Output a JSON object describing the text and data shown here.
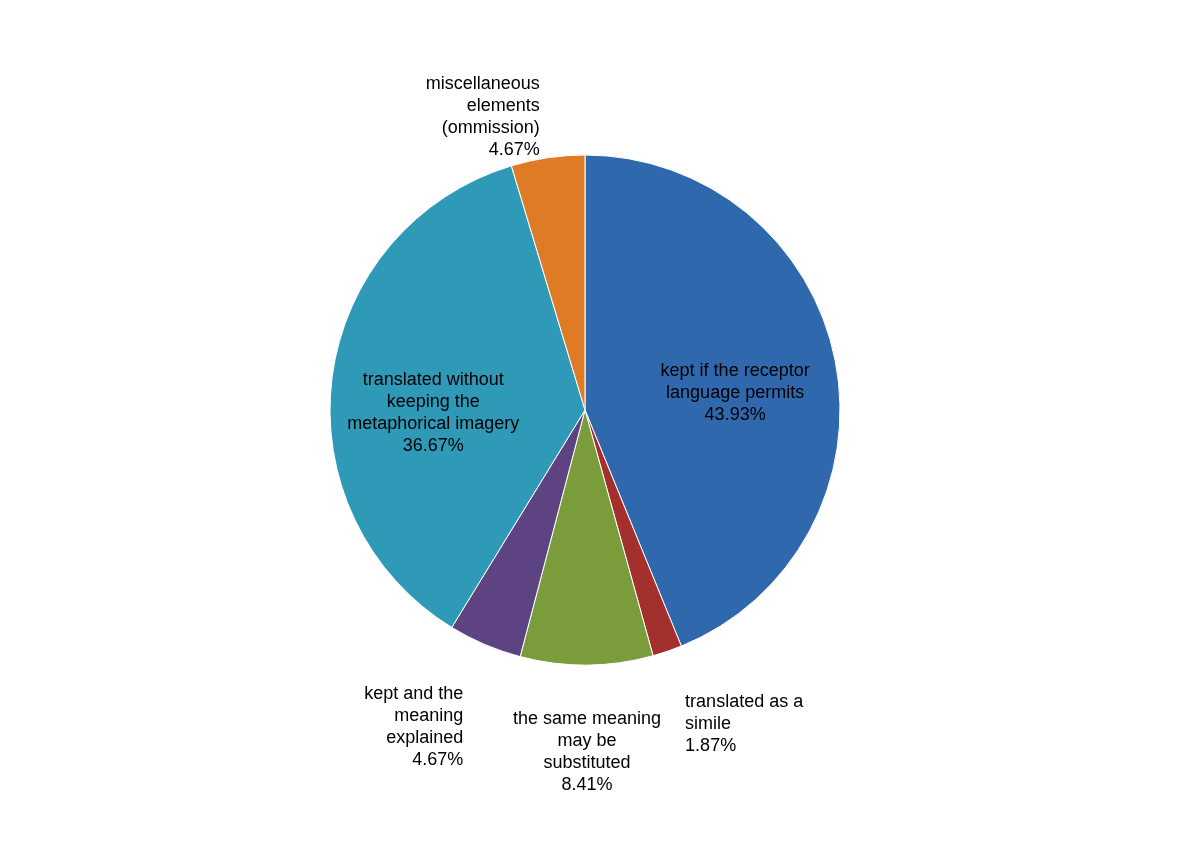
{
  "chart_data": {
    "type": "pie",
    "categories": [
      "kept if the receptor language permits",
      "translated as a simile",
      "the same meaning may be substituted",
      "kept and the meaning explained",
      "translated without keeping the metaphorical imagery",
      "miscellaneous elements (ommission)"
    ],
    "values": [
      43.93,
      1.87,
      8.41,
      4.67,
      36.67,
      4.67
    ],
    "value_labels": [
      "43.93%",
      "1.87%",
      "8.41%",
      "4.67%",
      "36.67%",
      "4.67%"
    ],
    "colors": [
      "#3068ad",
      "#a3302c",
      "#7b9c3a",
      "#5d4382",
      "#2f9ab7",
      "#e07b25"
    ]
  }
}
